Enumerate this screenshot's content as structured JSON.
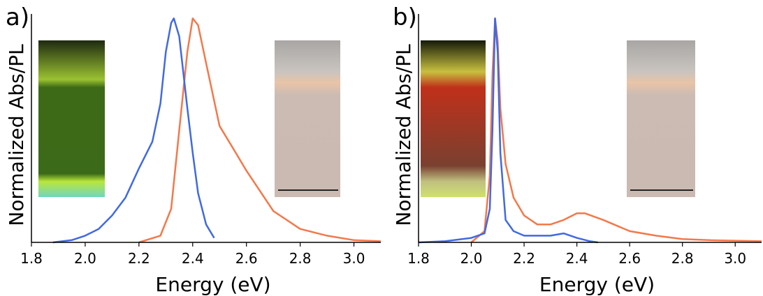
{
  "chart_data": [
    {
      "type": "line",
      "panel_label": "a)",
      "xlabel": "Energy (eV)",
      "ylabel": "Normalized Abs/PL",
      "xlim": [
        1.8,
        3.1
      ],
      "ylim": [
        0,
        1.02
      ],
      "xticks": [
        1.8,
        {
          "value": 2.0,
          "label": "2.0"
        },
        2.2,
        2.4,
        2.6,
        2.8,
        {
          "value": 3.0,
          "label": "3.0"
        }
      ],
      "series": [
        {
          "color": "#4169e1",
          "x": [
            1.88,
            1.95,
            2.0,
            2.05,
            2.1,
            2.15,
            2.2,
            2.25,
            2.28,
            2.3,
            2.32,
            2.33,
            2.35,
            2.38,
            2.4,
            2.42,
            2.45,
            2.48
          ],
          "values": [
            0,
            0.01,
            0.03,
            0.06,
            0.12,
            0.2,
            0.33,
            0.45,
            0.62,
            0.85,
            0.98,
            1.0,
            0.92,
            0.6,
            0.4,
            0.22,
            0.08,
            0.02
          ]
        },
        {
          "color": "#f4784a",
          "x": [
            2.2,
            2.28,
            2.32,
            2.35,
            2.38,
            2.4,
            2.42,
            2.45,
            2.5,
            2.55,
            2.6,
            2.7,
            2.8,
            2.9,
            3.0,
            3.1
          ],
          "values": [
            0,
            0.03,
            0.15,
            0.5,
            0.85,
            1.0,
            0.97,
            0.8,
            0.52,
            0.42,
            0.32,
            0.14,
            0.06,
            0.03,
            0.01,
            0.005
          ]
        }
      ]
    },
    {
      "type": "line",
      "panel_label": "b)",
      "xlabel": "Energy (eV)",
      "ylabel": "Normalized Abs/PL",
      "xlim": [
        1.8,
        3.1
      ],
      "ylim": [
        0,
        1.02
      ],
      "xticks": [
        1.8,
        {
          "value": 2.0,
          "label": "2.0"
        },
        2.2,
        2.4,
        2.6,
        2.8,
        {
          "value": 3.0,
          "label": "3.0"
        }
      ],
      "series": [
        {
          "color": "#4169e1",
          "x": [
            1.8,
            1.9,
            2.0,
            2.05,
            2.07,
            2.08,
            2.09,
            2.1,
            2.11,
            2.13,
            2.16,
            2.2,
            2.3,
            2.35,
            2.4,
            2.45,
            2.48
          ],
          "values": [
            0,
            0.005,
            0.02,
            0.04,
            0.15,
            0.5,
            1.0,
            0.85,
            0.4,
            0.1,
            0.05,
            0.03,
            0.03,
            0.04,
            0.02,
            0.005,
            0
          ]
        },
        {
          "color": "#f4784a",
          "x": [
            2.0,
            2.05,
            2.07,
            2.08,
            2.09,
            2.1,
            2.11,
            2.13,
            2.16,
            2.2,
            2.25,
            2.3,
            2.35,
            2.4,
            2.43,
            2.5,
            2.6,
            2.7,
            2.8,
            2.9,
            3.1
          ],
          "values": [
            0,
            0.05,
            0.3,
            0.75,
            1.0,
            0.9,
            0.6,
            0.35,
            0.2,
            0.12,
            0.08,
            0.08,
            0.1,
            0.13,
            0.13,
            0.1,
            0.05,
            0.03,
            0.015,
            0.01,
            0.005
          ]
        }
      ]
    }
  ]
}
